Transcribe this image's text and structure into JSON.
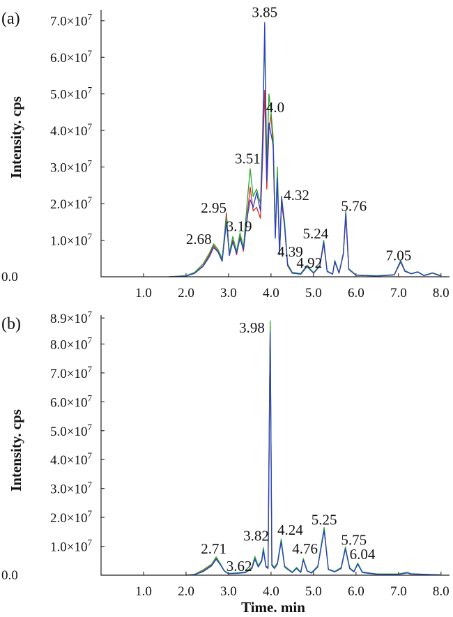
{
  "chart_data": [
    {
      "type": "line",
      "panel_label": "(a)",
      "ylabel": "Intensity. cps",
      "xlabel": "",
      "xlim": [
        0,
        8.2
      ],
      "ylim": [
        0,
        73000000
      ],
      "x_ticks": [
        {
          "value": 0.0,
          "label": "0.0"
        },
        {
          "value": 1.0,
          "label": "1.0"
        },
        {
          "value": 2.0,
          "label": "2.0"
        },
        {
          "value": 3.0,
          "label": "3.0"
        },
        {
          "value": 4.0,
          "label": "4.0"
        },
        {
          "value": 5.0,
          "label": "5.0"
        },
        {
          "value": 6.0,
          "label": "6.0"
        },
        {
          "value": 7.0,
          "label": "7.0"
        },
        {
          "value": 8.0,
          "label": "8.0"
        }
      ],
      "y_ticks": [
        {
          "value": 10000000,
          "mant": "1.0×10",
          "exp": "7"
        },
        {
          "value": 20000000,
          "mant": "2.0×10",
          "exp": "7"
        },
        {
          "value": 30000000,
          "mant": "3.0×10",
          "exp": "7"
        },
        {
          "value": 40000000,
          "mant": "4.0×10",
          "exp": "7"
        },
        {
          "value": 50000000,
          "mant": "5.0×10",
          "exp": "7"
        },
        {
          "value": 60000000,
          "mant": "6.0×10",
          "exp": "7"
        },
        {
          "value": 70000000,
          "mant": "7.0×10",
          "exp": "7"
        }
      ],
      "peak_labels": [
        {
          "text": "3.85",
          "x": 3.85,
          "y": 71000000
        },
        {
          "text": "4.0",
          "x": 4.1,
          "y": 45000000
        },
        {
          "text": "3.51",
          "x": 3.45,
          "y": 31000000
        },
        {
          "text": "4.32",
          "x": 4.6,
          "y": 21000000
        },
        {
          "text": "2.95",
          "x": 2.65,
          "y": 17500000
        },
        {
          "text": "5.76",
          "x": 5.95,
          "y": 18000000
        },
        {
          "text": "3.19",
          "x": 3.25,
          "y": 12500000
        },
        {
          "text": "5.24",
          "x": 5.05,
          "y": 10500000
        },
        {
          "text": "2.68",
          "x": 2.3,
          "y": 9000000
        },
        {
          "text": "4.39",
          "x": 4.45,
          "y": 5500000
        },
        {
          "text": "4.92",
          "x": 4.9,
          "y": 2500000
        },
        {
          "text": "7.05",
          "x": 7.0,
          "y": 4500000
        }
      ],
      "series": [
        {
          "color": "#d42a2a",
          "x": [
            1.6,
            2.0,
            2.2,
            2.4,
            2.55,
            2.65,
            2.75,
            2.85,
            2.95,
            3.02,
            3.1,
            3.19,
            3.27,
            3.35,
            3.45,
            3.51,
            3.58,
            3.66,
            3.75,
            3.8,
            3.85,
            3.9,
            3.95,
            4.0,
            4.05,
            4.1,
            4.15,
            4.2,
            4.25,
            4.32,
            4.39,
            4.5,
            4.7,
            4.85,
            4.92,
            5.0,
            5.15,
            5.24,
            5.32,
            5.45,
            5.5,
            5.6,
            5.7,
            5.76,
            5.83,
            6.0,
            6.5,
            6.9,
            7.05,
            7.15,
            7.3,
            7.45,
            7.6,
            7.8,
            8.0
          ],
          "y": [
            0,
            200000,
            1000000,
            3000000,
            6000000,
            8500000,
            7000000,
            4500000,
            17500000,
            6000000,
            10000000,
            6000000,
            11000000,
            7000000,
            18000000,
            24500000,
            18000000,
            19000000,
            16000000,
            32000000,
            51000000,
            24000000,
            40000000,
            44500000,
            35000000,
            11000000,
            28000000,
            6000000,
            20000000,
            14000000,
            3000000,
            1000000,
            800000,
            3000000,
            2000000,
            1000000,
            3000000,
            9000000,
            1500000,
            700000,
            4000000,
            1000000,
            6000000,
            16500000,
            2000000,
            400000,
            200000,
            500000,
            4000000,
            1500000,
            800000,
            1300000,
            300000,
            1000000,
            200000
          ]
        },
        {
          "color": "#2aa62a",
          "x": [
            1.6,
            2.0,
            2.2,
            2.4,
            2.55,
            2.65,
            2.75,
            2.85,
            2.95,
            3.02,
            3.1,
            3.19,
            3.27,
            3.35,
            3.45,
            3.51,
            3.58,
            3.66,
            3.75,
            3.8,
            3.85,
            3.9,
            3.95,
            4.0,
            4.05,
            4.1,
            4.15,
            4.2,
            4.25,
            4.32,
            4.39,
            4.5,
            4.7,
            4.85,
            4.92,
            5.0,
            5.15,
            5.24,
            5.32,
            5.45,
            5.5,
            5.6,
            5.7,
            5.76,
            5.83,
            6.0,
            6.5,
            6.9,
            7.05,
            7.15,
            7.3,
            7.45,
            7.6,
            7.8,
            8.0
          ],
          "y": [
            0,
            300000,
            1200000,
            3500000,
            6500000,
            9000000,
            7500000,
            5000000,
            16500000,
            6500000,
            11000000,
            7000000,
            12000000,
            8000000,
            22000000,
            29500000,
            22000000,
            24000000,
            20000000,
            38000000,
            66000000,
            30000000,
            50000000,
            45000000,
            38000000,
            12000000,
            30000000,
            6500000,
            21500000,
            15000000,
            3500000,
            1200000,
            900000,
            3200000,
            2200000,
            1100000,
            3200000,
            10000000,
            1600000,
            800000,
            4500000,
            1100000,
            6500000,
            18000000,
            2200000,
            500000,
            300000,
            600000,
            4500000,
            1700000,
            900000,
            1400000,
            400000,
            1100000,
            300000
          ]
        },
        {
          "color": "#2a3fc8",
          "x": [
            1.6,
            2.0,
            2.2,
            2.4,
            2.55,
            2.65,
            2.75,
            2.85,
            2.95,
            3.02,
            3.1,
            3.19,
            3.27,
            3.35,
            3.45,
            3.51,
            3.58,
            3.66,
            3.75,
            3.8,
            3.85,
            3.9,
            3.95,
            4.0,
            4.05,
            4.1,
            4.15,
            4.2,
            4.25,
            4.32,
            4.39,
            4.5,
            4.7,
            4.85,
            4.92,
            5.0,
            5.15,
            5.24,
            5.32,
            5.45,
            5.5,
            5.6,
            5.7,
            5.76,
            5.83,
            6.0,
            6.5,
            6.9,
            7.05,
            7.15,
            7.3,
            7.45,
            7.6,
            7.8,
            8.0
          ],
          "y": [
            0,
            200000,
            900000,
            2800000,
            5500000,
            8000000,
            6800000,
            4200000,
            15000000,
            5800000,
            9500000,
            6500000,
            10500000,
            7500000,
            17000000,
            21000000,
            19000000,
            23000000,
            18000000,
            35000000,
            69500000,
            26000000,
            42000000,
            39000000,
            36000000,
            10500000,
            27000000,
            6000000,
            22000000,
            13500000,
            3200000,
            1000000,
            700000,
            2800000,
            1900000,
            1000000,
            2900000,
            9500000,
            1400000,
            700000,
            4200000,
            1000000,
            6200000,
            17500000,
            2000000,
            400000,
            200000,
            500000,
            4200000,
            1500000,
            800000,
            1300000,
            300000,
            1000000,
            200000
          ]
        }
      ]
    },
    {
      "type": "line",
      "panel_label": "(b)",
      "ylabel": "Intensity. cps",
      "xlabel": "Time. min",
      "xlim": [
        0,
        8.2
      ],
      "ylim": [
        0,
        90000000
      ],
      "x_ticks": [
        {
          "value": 0.0,
          "label": "0.0"
        },
        {
          "value": 1.0,
          "label": "1.0"
        },
        {
          "value": 2.0,
          "label": "2.0"
        },
        {
          "value": 3.0,
          "label": "3.0"
        },
        {
          "value": 4.0,
          "label": "4.0"
        },
        {
          "value": 5.0,
          "label": "5.0"
        },
        {
          "value": 6.0,
          "label": "6.0"
        },
        {
          "value": 7.0,
          "label": "7.0"
        },
        {
          "value": 8.0,
          "label": "8.0"
        }
      ],
      "y_ticks": [
        {
          "value": 10000000,
          "mant": "1.0×10",
          "exp": "7"
        },
        {
          "value": 20000000,
          "mant": "2.0×10",
          "exp": "7"
        },
        {
          "value": 30000000,
          "mant": "3.0×10",
          "exp": "7"
        },
        {
          "value": 40000000,
          "mant": "4.0×10",
          "exp": "7"
        },
        {
          "value": 50000000,
          "mant": "5.0×10",
          "exp": "7"
        },
        {
          "value": 60000000,
          "mant": "6.0×10",
          "exp": "7"
        },
        {
          "value": 70000000,
          "mant": "7.0×10",
          "exp": "7"
        },
        {
          "value": 80000000,
          "mant": "8.0×10",
          "exp": "7"
        },
        {
          "value": 89000000,
          "mant": "8.9×10",
          "exp": "7"
        }
      ],
      "peak_labels": [
        {
          "text": "3.98",
          "x": 3.55,
          "y": 84000000
        },
        {
          "text": "3.82",
          "x": 3.65,
          "y": 12000000
        },
        {
          "text": "4.24",
          "x": 4.45,
          "y": 14000000
        },
        {
          "text": "5.25",
          "x": 5.25,
          "y": 17500000
        },
        {
          "text": "2.71",
          "x": 2.65,
          "y": 7500000
        },
        {
          "text": "5.75",
          "x": 5.95,
          "y": 10500000
        },
        {
          "text": "4.76",
          "x": 4.8,
          "y": 7500000
        },
        {
          "text": "6.04",
          "x": 6.15,
          "y": 5500000
        },
        {
          "text": "3.62",
          "x": 3.25,
          "y": 1500000
        }
      ],
      "series": [
        {
          "color": "#d42a2a",
          "x": [
            2.0,
            2.2,
            2.4,
            2.5,
            2.6,
            2.71,
            2.8,
            2.9,
            3.0,
            3.2,
            3.4,
            3.55,
            3.62,
            3.7,
            3.78,
            3.82,
            3.88,
            3.93,
            3.98,
            4.02,
            4.08,
            4.15,
            4.24,
            4.32,
            4.4,
            4.5,
            4.6,
            4.7,
            4.76,
            4.85,
            4.95,
            5.1,
            5.25,
            5.35,
            5.5,
            5.65,
            5.75,
            5.85,
            5.95,
            6.04,
            6.15,
            6.5,
            7.0,
            7.2,
            7.3,
            8.0
          ],
          "y": [
            0,
            200000,
            1500000,
            2500000,
            3500000,
            6000000,
            4000000,
            1500000,
            500000,
            700000,
            1000000,
            2500000,
            6000000,
            3000000,
            5000000,
            9000000,
            3000000,
            2500000,
            86000000,
            3500000,
            2500000,
            4000000,
            12000000,
            3000000,
            2000000,
            1000000,
            2500000,
            1000000,
            5500000,
            1500000,
            800000,
            3000000,
            16000000,
            2000000,
            1200000,
            2500000,
            9500000,
            2500000,
            1200000,
            4000000,
            1000000,
            300000,
            300000,
            900000,
            400000,
            100000
          ]
        },
        {
          "color": "#2aa62a",
          "x": [
            2.0,
            2.2,
            2.4,
            2.5,
            2.6,
            2.71,
            2.8,
            2.9,
            3.0,
            3.2,
            3.4,
            3.55,
            3.62,
            3.7,
            3.78,
            3.82,
            3.88,
            3.93,
            3.98,
            4.02,
            4.08,
            4.15,
            4.24,
            4.32,
            4.4,
            4.5,
            4.6,
            4.7,
            4.76,
            4.85,
            4.95,
            5.1,
            5.25,
            5.35,
            5.5,
            5.65,
            5.75,
            5.85,
            5.95,
            6.04,
            6.15,
            6.5,
            7.0,
            7.2,
            7.3,
            8.0
          ],
          "y": [
            0,
            300000,
            1800000,
            2800000,
            3800000,
            6300000,
            4200000,
            1600000,
            600000,
            800000,
            1100000,
            2800000,
            6500000,
            3200000,
            5300000,
            9500000,
            3200000,
            2700000,
            88000000,
            3800000,
            2700000,
            4300000,
            12500000,
            3200000,
            2200000,
            1100000,
            2700000,
            1100000,
            5800000,
            1600000,
            900000,
            3200000,
            16500000,
            2100000,
            1300000,
            2700000,
            9800000,
            2600000,
            1300000,
            4200000,
            1100000,
            400000,
            400000,
            1000000,
            500000,
            100000
          ]
        },
        {
          "color": "#2a3fc8",
          "x": [
            2.0,
            2.2,
            2.4,
            2.5,
            2.6,
            2.71,
            2.8,
            2.9,
            3.0,
            3.2,
            3.4,
            3.55,
            3.62,
            3.7,
            3.78,
            3.82,
            3.88,
            3.93,
            3.98,
            4.02,
            4.08,
            4.15,
            4.24,
            4.32,
            4.4,
            4.5,
            4.6,
            4.7,
            4.76,
            4.85,
            4.95,
            5.1,
            5.25,
            5.35,
            5.5,
            5.65,
            5.75,
            5.85,
            5.95,
            6.04,
            6.15,
            6.5,
            7.0,
            7.2,
            7.3,
            8.0
          ],
          "y": [
            0,
            200000,
            1200000,
            2200000,
            3200000,
            5500000,
            3800000,
            1400000,
            500000,
            600000,
            900000,
            2300000,
            5500000,
            2800000,
            4800000,
            8500000,
            2800000,
            2300000,
            84000000,
            3300000,
            2300000,
            3800000,
            11500000,
            2800000,
            1900000,
            900000,
            2300000,
            900000,
            5200000,
            1400000,
            700000,
            2800000,
            15500000,
            1900000,
            1100000,
            2300000,
            9000000,
            2300000,
            1100000,
            3800000,
            900000,
            300000,
            300000,
            800000,
            400000,
            100000
          ]
        }
      ]
    }
  ]
}
